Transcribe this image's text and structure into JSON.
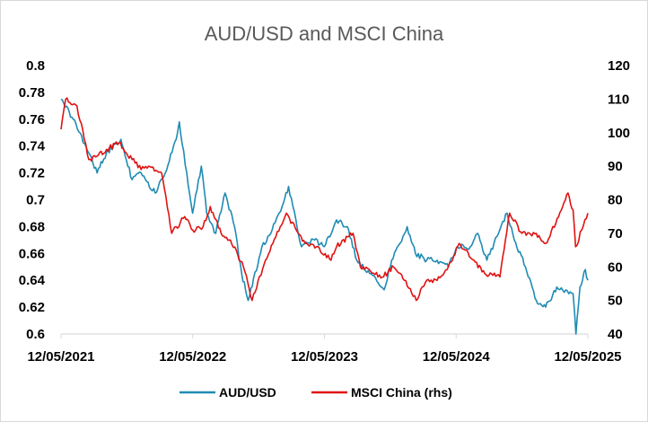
{
  "chart_data": {
    "type": "line",
    "title": "AUD/USD and MSCI China",
    "x_ticks": [
      "12/05/2021",
      "12/05/2022",
      "12/05/2023",
      "12/05/2024",
      "12/05/2025"
    ],
    "y_left": {
      "ticks": [
        "0.6",
        "0.62",
        "0.64",
        "0.66",
        "0.68",
        "0.7",
        "0.72",
        "0.74",
        "0.76",
        "0.78",
        "0.8"
      ],
      "range": [
        0.6,
        0.8
      ]
    },
    "y_right": {
      "ticks": [
        "40",
        "50",
        "60",
        "70",
        "80",
        "90",
        "100",
        "110",
        "120"
      ],
      "range": [
        40,
        120
      ]
    },
    "legend_position": "bottom",
    "series": [
      {
        "name": "AUD/USD",
        "axis": "left",
        "color": "#1f8bb3",
        "points": [
          [
            "2021-05-12",
            0.775
          ],
          [
            "2021-06-15",
            0.76
          ],
          [
            "2021-07-20",
            0.74
          ],
          [
            "2021-08-20",
            0.72
          ],
          [
            "2021-09-15",
            0.735
          ],
          [
            "2021-10-25",
            0.745
          ],
          [
            "2021-11-25",
            0.715
          ],
          [
            "2021-12-20",
            0.72
          ],
          [
            "2022-01-28",
            0.705
          ],
          [
            "2022-02-25",
            0.72
          ],
          [
            "2022-03-31",
            0.75
          ],
          [
            "2022-04-05",
            0.758
          ],
          [
            "2022-05-12",
            0.69
          ],
          [
            "2022-06-05",
            0.725
          ],
          [
            "2022-06-20",
            0.69
          ],
          [
            "2022-07-15",
            0.675
          ],
          [
            "2022-08-10",
            0.705
          ],
          [
            "2022-09-05",
            0.68
          ],
          [
            "2022-09-25",
            0.645
          ],
          [
            "2022-10-13",
            0.625
          ],
          [
            "2022-11-20",
            0.665
          ],
          [
            "2022-12-15",
            0.675
          ],
          [
            "2023-01-15",
            0.695
          ],
          [
            "2023-02-02",
            0.71
          ],
          [
            "2023-03-10",
            0.665
          ],
          [
            "2023-04-15",
            0.67
          ],
          [
            "2023-05-12",
            0.665
          ],
          [
            "2023-06-15",
            0.685
          ],
          [
            "2023-07-15",
            0.68
          ],
          [
            "2023-08-10",
            0.655
          ],
          [
            "2023-09-15",
            0.645
          ],
          [
            "2023-10-25",
            0.633
          ],
          [
            "2023-11-15",
            0.655
          ],
          [
            "2023-12-28",
            0.68
          ],
          [
            "2024-01-20",
            0.66
          ],
          [
            "2024-02-20",
            0.655
          ],
          [
            "2024-03-20",
            0.655
          ],
          [
            "2024-04-20",
            0.65
          ],
          [
            "2024-05-15",
            0.665
          ],
          [
            "2024-06-20",
            0.665
          ],
          [
            "2024-07-10",
            0.675
          ],
          [
            "2024-08-05",
            0.655
          ],
          [
            "2024-09-30",
            0.69
          ],
          [
            "2024-10-20",
            0.67
          ],
          [
            "2024-11-20",
            0.65
          ],
          [
            "2024-12-20",
            0.625
          ],
          [
            "2025-01-15",
            0.62
          ],
          [
            "2025-02-15",
            0.635
          ],
          [
            "2025-03-20",
            0.63
          ],
          [
            "2025-04-01",
            0.63
          ],
          [
            "2025-04-09",
            0.6
          ],
          [
            "2025-04-20",
            0.635
          ],
          [
            "2025-05-05",
            0.648
          ],
          [
            "2025-05-12",
            0.64
          ]
        ]
      },
      {
        "name": "MSCI China (rhs)",
        "axis": "right",
        "color": "#e01212",
        "points": [
          [
            "2021-05-12",
            101
          ],
          [
            "2021-05-25",
            110
          ],
          [
            "2021-06-25",
            108
          ],
          [
            "2021-07-28",
            92
          ],
          [
            "2021-08-20",
            93
          ],
          [
            "2021-09-15",
            95
          ],
          [
            "2021-10-20",
            97
          ],
          [
            "2021-11-25",
            92
          ],
          [
            "2021-12-20",
            89
          ],
          [
            "2022-01-10",
            90
          ],
          [
            "2022-02-15",
            88
          ],
          [
            "2022-03-15",
            70
          ],
          [
            "2022-04-20",
            75
          ],
          [
            "2022-05-12",
            71
          ],
          [
            "2022-06-10",
            72
          ],
          [
            "2022-06-30",
            78
          ],
          [
            "2022-07-30",
            70
          ],
          [
            "2022-08-25",
            68
          ],
          [
            "2022-09-30",
            60
          ],
          [
            "2022-10-24",
            50
          ],
          [
            "2022-11-30",
            62
          ],
          [
            "2023-01-10",
            72
          ],
          [
            "2023-01-27",
            76
          ],
          [
            "2023-03-01",
            70
          ],
          [
            "2023-03-20",
            67
          ],
          [
            "2023-04-20",
            66
          ],
          [
            "2023-05-31",
            62
          ],
          [
            "2023-06-15",
            66
          ],
          [
            "2023-07-31",
            70
          ],
          [
            "2023-08-20",
            60
          ],
          [
            "2023-10-20",
            57
          ],
          [
            "2023-11-20",
            60
          ],
          [
            "2023-12-20",
            56
          ],
          [
            "2024-01-22",
            50
          ],
          [
            "2024-02-20",
            56
          ],
          [
            "2024-03-20",
            56
          ],
          [
            "2024-04-20",
            60
          ],
          [
            "2024-05-20",
            67
          ],
          [
            "2024-06-30",
            62
          ],
          [
            "2024-07-30",
            58
          ],
          [
            "2024-09-10",
            57
          ],
          [
            "2024-10-07",
            76
          ],
          [
            "2024-11-10",
            70
          ],
          [
            "2024-12-20",
            70
          ],
          [
            "2025-01-15",
            67
          ],
          [
            "2025-02-20",
            75
          ],
          [
            "2025-03-18",
            82
          ],
          [
            "2025-04-01",
            77
          ],
          [
            "2025-04-08",
            66
          ],
          [
            "2025-04-25",
            71
          ],
          [
            "2025-05-12",
            76
          ]
        ]
      }
    ]
  }
}
